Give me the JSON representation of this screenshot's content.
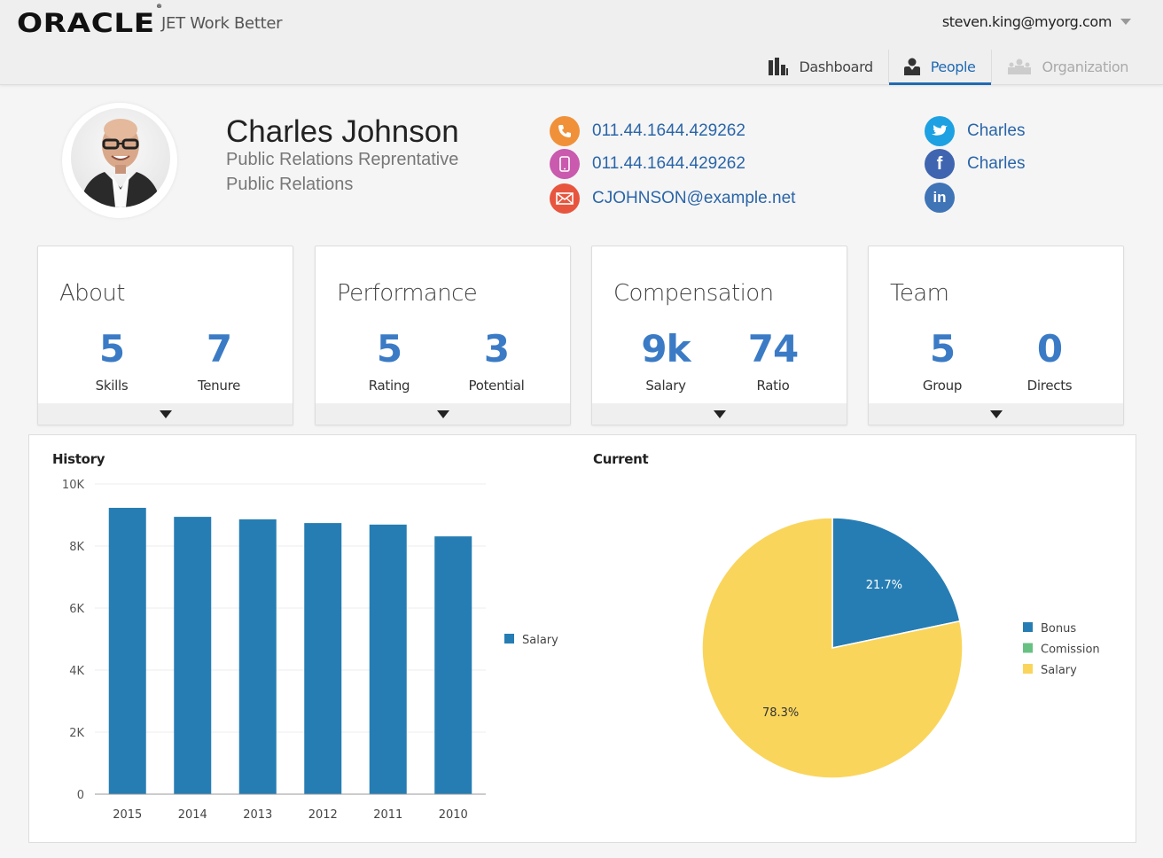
{
  "header": {
    "logo": "ORACLE",
    "logo_mark": "®",
    "app_name": "JET Work Better",
    "user_email": "steven.king@myorg.com"
  },
  "nav": {
    "items": [
      {
        "label": "Dashboard",
        "icon": "bar-chart-icon",
        "active": false
      },
      {
        "label": "People",
        "icon": "person-icon",
        "active": true
      },
      {
        "label": "Organization",
        "icon": "group-icon",
        "active": false,
        "disabled": true
      }
    ],
    "accent_color": "#1f6ab3"
  },
  "profile": {
    "name": "Charles Johnson",
    "title": "Public Relations Reprentative",
    "department": "Public Relations",
    "contacts": [
      {
        "type": "phone",
        "icon": "phone-icon",
        "value": "011.44.1644.429262",
        "color": "#f0913a"
      },
      {
        "type": "mobile",
        "icon": "mobile-icon",
        "value": "011.44.1644.429262",
        "color": "#c95aae"
      },
      {
        "type": "email",
        "icon": "mail-icon",
        "value": "CJOHNSON@example.net",
        "color": "#e8553f"
      }
    ],
    "social": [
      {
        "network": "twitter",
        "icon": "twitter-icon",
        "value": "Charles",
        "color": "#1da1e2"
      },
      {
        "network": "facebook",
        "icon": "facebook-icon",
        "value": "Charles",
        "color": "#3f65b0"
      },
      {
        "network": "linkedin",
        "icon": "linkedin-icon",
        "value": "",
        "color": "#3f74b7"
      }
    ]
  },
  "cards": [
    {
      "title": "About",
      "metrics": [
        {
          "value": "5",
          "label": "Skills"
        },
        {
          "value": "7",
          "label": "Tenure"
        }
      ]
    },
    {
      "title": "Performance",
      "metrics": [
        {
          "value": "5",
          "label": "Rating"
        },
        {
          "value": "3",
          "label": "Potential"
        }
      ]
    },
    {
      "title": "Compensation",
      "metrics": [
        {
          "value": "9k",
          "label": "Salary"
        },
        {
          "value": "74",
          "label": "Ratio"
        }
      ]
    },
    {
      "title": "Team",
      "metrics": [
        {
          "value": "5",
          "label": "Group"
        },
        {
          "value": "0",
          "label": "Directs"
        }
      ]
    }
  ],
  "chart_data": [
    {
      "type": "bar",
      "title": "History",
      "categories": [
        "2015",
        "2014",
        "2013",
        "2012",
        "2011",
        "2010"
      ],
      "series": [
        {
          "name": "Salary",
          "color": "#267db3",
          "values": [
            9230,
            8940,
            8860,
            8740,
            8690,
            8310
          ]
        }
      ],
      "ylim": [
        0,
        10000
      ],
      "yticks": [
        0,
        2000,
        4000,
        6000,
        8000,
        10000
      ],
      "ytick_labels": [
        "0",
        "2K",
        "4K",
        "6K",
        "8K",
        "10K"
      ],
      "xlabel": "",
      "ylabel": "",
      "grid": true,
      "legend": "right"
    },
    {
      "type": "pie",
      "title": "Current",
      "slices": [
        {
          "name": "Bonus",
          "value": 21.7,
          "label": "21.7%",
          "color": "#267db3"
        },
        {
          "name": "Comission",
          "value": 0,
          "label": "",
          "color": "#68c182"
        },
        {
          "name": "Salary",
          "value": 78.3,
          "label": "78.3%",
          "color": "#fad55c"
        }
      ],
      "legend": "right"
    }
  ]
}
